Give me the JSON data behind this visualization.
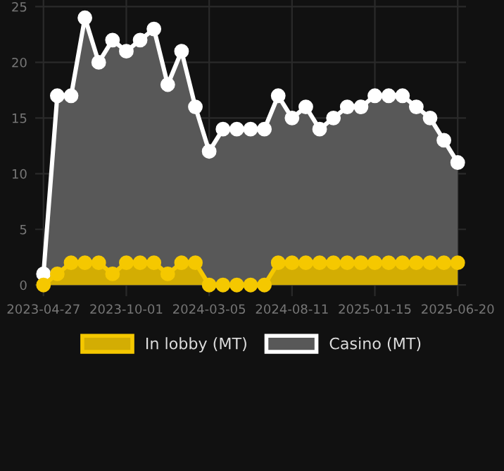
{
  "chart_data": {
    "type": "area",
    "categories": [
      "2023-04-27",
      null,
      null,
      null,
      null,
      null,
      "2023-10-01",
      null,
      null,
      null,
      null,
      null,
      "2024-03-05",
      null,
      null,
      null,
      null,
      null,
      "2024-08-11",
      null,
      null,
      null,
      null,
      null,
      "2025-01-15",
      null,
      null,
      null,
      null,
      null,
      "2025-06-20"
    ],
    "series": [
      {
        "name": "Casino (MT)",
        "color": "#ffffff",
        "values": [
          1,
          17,
          17,
          24,
          20,
          22,
          21,
          22,
          23,
          18,
          21,
          16,
          12,
          14,
          14,
          14,
          14,
          17,
          15,
          16,
          14,
          15,
          16,
          16,
          17,
          17,
          17,
          16,
          15,
          13,
          11
        ]
      },
      {
        "name": "In lobby (MT)",
        "color": "#f5c800",
        "values": [
          0,
          1,
          2,
          2,
          2,
          1,
          2,
          2,
          2,
          1,
          2,
          2,
          0,
          0,
          0,
          0,
          0,
          2,
          2,
          2,
          2,
          2,
          2,
          2,
          2,
          2,
          2,
          2,
          2,
          2,
          2
        ]
      }
    ],
    "ylim": [
      -1,
      25.6
    ],
    "yticks": [
      0,
      5,
      10,
      15,
      20,
      25
    ],
    "grid": true,
    "legend": "bottom",
    "marker": "circle",
    "line_style": "solid"
  }
}
